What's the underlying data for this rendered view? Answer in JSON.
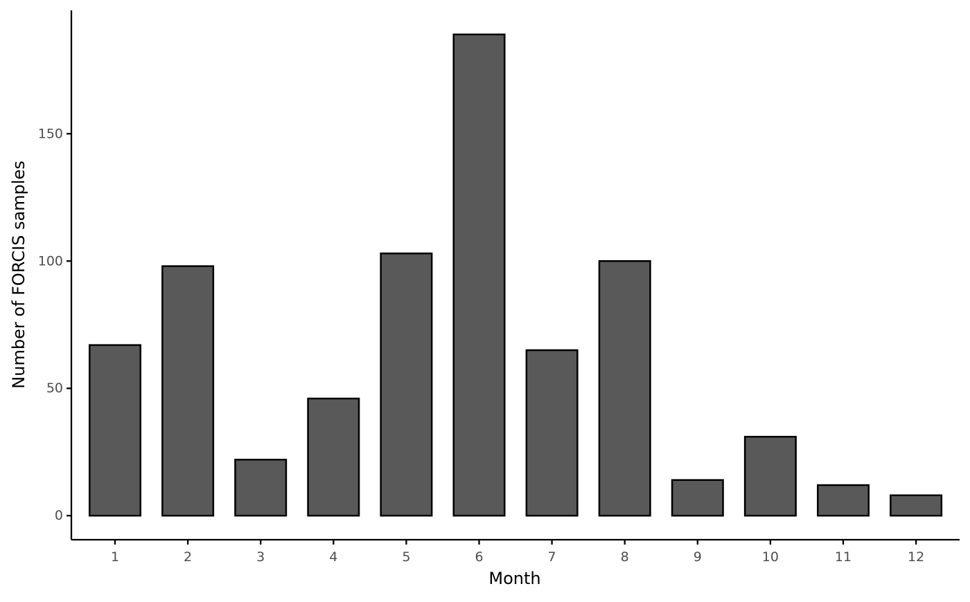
{
  "chart_data": {
    "type": "bar",
    "title": "",
    "xlabel": "Month",
    "ylabel": "Number of FORCIS samples",
    "categories": [
      "1",
      "2",
      "3",
      "4",
      "5",
      "6",
      "7",
      "8",
      "9",
      "10",
      "11",
      "12"
    ],
    "values": [
      67,
      98,
      22,
      46,
      103,
      189,
      65,
      100,
      14,
      31,
      12,
      8
    ],
    "ylim": [
      -9.45,
      198.45
    ],
    "yticks": [
      0,
      50,
      100,
      150
    ],
    "ytick_labels": [
      "0",
      "50",
      "100",
      "150"
    ],
    "grid": false,
    "legend": "none",
    "colors": {
      "bar_fill": "#595959",
      "bar_stroke": "#000000",
      "axis": "#000000",
      "tick_label": "#4d4d4d"
    }
  }
}
